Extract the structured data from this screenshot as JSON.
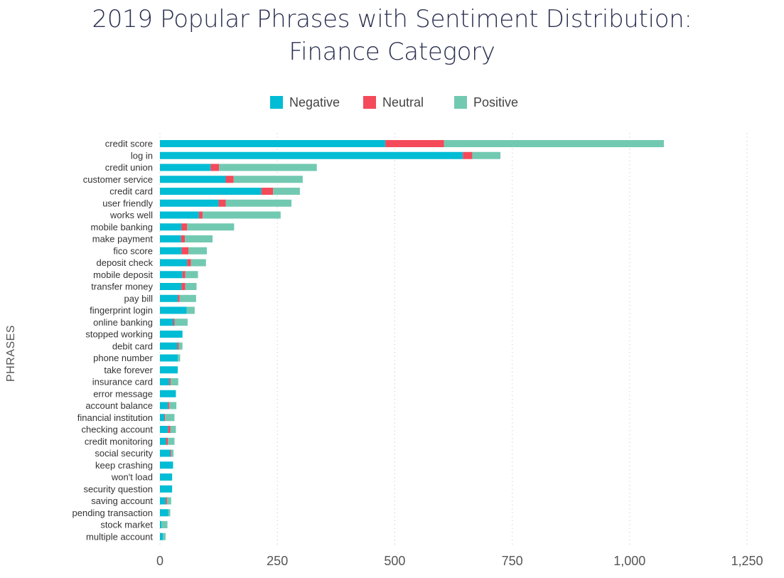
{
  "chart_data": {
    "type": "bar",
    "orientation": "horizontal",
    "stacked": true,
    "title": "2019 Popular Phrases with Sentiment Distribution: Finance Category",
    "title_lines": [
      "2019 Popular Phrases with Sentiment Distribution:",
      "Finance Category"
    ],
    "xlabel": "",
    "ylabel": "PHRASES",
    "xlim": [
      0,
      1250
    ],
    "xticks": [
      0,
      250,
      500,
      750,
      1000,
      1250
    ],
    "xtick_labels": [
      "0",
      "250",
      "500",
      "750",
      "1,000",
      "1,250"
    ],
    "grid": "vertical dotted",
    "legend_position": "top-center",
    "categories": [
      "credit score",
      "log in",
      "credit union",
      "customer service",
      "credit card",
      "user friendly",
      "works well",
      "mobile banking",
      "make payment",
      "fico score",
      "deposit check",
      "mobile deposit",
      "transfer money",
      "pay bill",
      "fingerprint login",
      "online banking",
      "stopped working",
      "debit card",
      "phone number",
      "take forever",
      "insurance card",
      "error message",
      "account balance",
      "financial institution",
      "checking account",
      "credit monitoring",
      "social security",
      "keep crashing",
      "won't load",
      "security question",
      "saving account",
      "pending transaction",
      "stock market",
      "multiple account"
    ],
    "series": [
      {
        "name": "Negative",
        "color": "#00bcd4",
        "values": [
          480,
          645,
          108,
          140,
          216,
          125,
          83,
          46,
          45,
          46,
          58,
          48,
          46,
          38,
          57,
          28,
          48,
          37,
          38,
          38,
          20,
          34,
          17,
          9,
          17,
          13,
          22,
          28,
          26,
          26,
          12,
          18,
          3,
          6
        ]
      },
      {
        "name": "Neutral",
        "color": "#f44a5a",
        "values": [
          125,
          20,
          18,
          17,
          25,
          15,
          8,
          12,
          8,
          15,
          8,
          6,
          8,
          4,
          0,
          3,
          0,
          3,
          0,
          0,
          3,
          0,
          3,
          2,
          5,
          4,
          2,
          0,
          0,
          0,
          3,
          0,
          0,
          0
        ]
      },
      {
        "name": "Positive",
        "color": "#72c9b2",
        "values": [
          468,
          60,
          208,
          147,
          57,
          140,
          166,
          100,
          59,
          39,
          32,
          27,
          24,
          35,
          17,
          28,
          0,
          8,
          5,
          0,
          16,
          0,
          15,
          20,
          12,
          14,
          5,
          0,
          0,
          0,
          9,
          4,
          13,
          6
        ]
      }
    ]
  }
}
